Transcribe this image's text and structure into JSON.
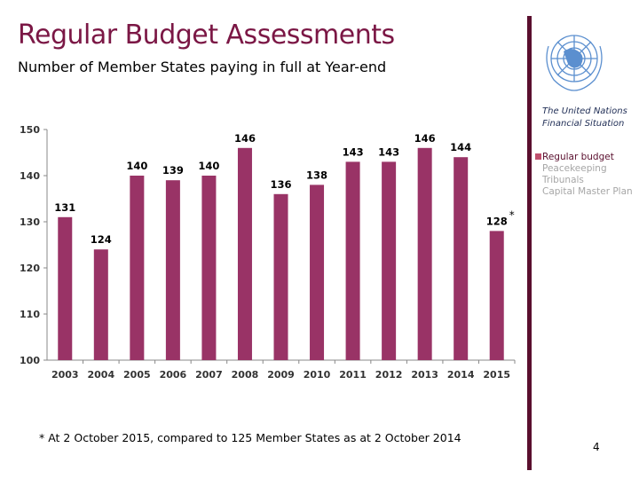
{
  "header": {
    "title": "Regular Budget Assessments",
    "subtitle": "Number of Member States paying in full at Year-end"
  },
  "sidebar": {
    "logo": "United Nations emblem",
    "org_title_line1": "The United Nations",
    "org_title_line2": "Financial Situation",
    "nav": [
      {
        "label": "Regular budget",
        "active": true
      },
      {
        "label": "Peacekeeping",
        "active": false
      },
      {
        "label": "Tribunals",
        "active": false
      },
      {
        "label": "Capital Master Plan",
        "active": false
      }
    ]
  },
  "footnote": "* At 2 October 2015, compared to 125 Member States as at 2 October 2014",
  "page_number": "4",
  "colors": {
    "bar": "#993366",
    "accent": "#7b1745",
    "sidebar_rule": "#5a0f2e"
  },
  "chart_data": {
    "type": "bar",
    "categories": [
      "2003",
      "2004",
      "2005",
      "2006",
      "2007",
      "2008",
      "2009",
      "2010",
      "2011",
      "2012",
      "2013",
      "2014",
      "2015"
    ],
    "values": [
      131,
      124,
      140,
      139,
      140,
      146,
      136,
      138,
      143,
      143,
      146,
      144,
      128
    ],
    "data_labels": [
      "131",
      "124",
      "140",
      "139",
      "140",
      "146",
      "136",
      "138",
      "143",
      "143",
      "146",
      "144",
      "128"
    ],
    "annotation": "*",
    "annotation_category": "2015",
    "ylim": [
      100,
      150
    ],
    "yticks": [
      100,
      110,
      120,
      130,
      140,
      150
    ],
    "grid": false,
    "xlabel": "",
    "ylabel": ""
  }
}
